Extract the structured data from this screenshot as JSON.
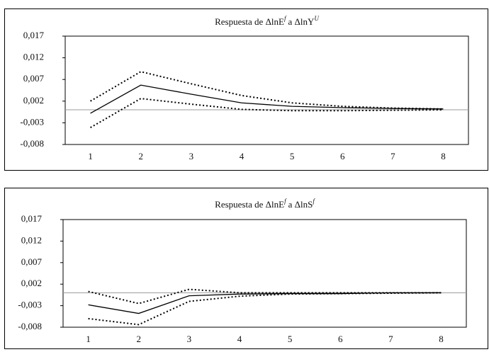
{
  "chart_data": [
    {
      "type": "line",
      "title": [
        "Respuesta de ΔlnE",
        "f",
        "a ΔlnY",
        "U"
      ],
      "categories": [
        "1",
        "2",
        "3",
        "4",
        "5",
        "6",
        "7",
        "8"
      ],
      "ylim": [
        -0.008,
        0.017
      ],
      "yticks": [
        {
          "value": -0.008,
          "label": "-0,008"
        },
        {
          "value": -0.003,
          "label": "-0,003"
        },
        {
          "value": 0.002,
          "label": "0,002"
        },
        {
          "value": 0.007,
          "label": "0,007"
        },
        {
          "value": 0.012,
          "label": "0,012"
        },
        {
          "value": 0.017,
          "label": "0,017"
        }
      ],
      "hline": 0,
      "series": [
        {
          "color": "#000000",
          "dash": "solid",
          "values": [
            -0.0008,
            0.0057,
            0.0036,
            0.0016,
            0.0008,
            0.0005,
            0.0003,
            0.0002
          ]
        },
        {
          "color": "#000000",
          "dash": "dotted",
          "values": [
            0.002,
            0.0088,
            0.006,
            0.0033,
            0.0016,
            0.0008,
            0.0004,
            0.0002
          ]
        },
        {
          "color": "#000000",
          "dash": "dotted",
          "values": [
            -0.0041,
            0.0026,
            0.0013,
            0.0001,
            -0.0002,
            -0.0002,
            -0.0001,
            0
          ]
        }
      ]
    },
    {
      "type": "line",
      "title": [
        "Respuesta de ΔlnE",
        "f",
        "a ΔlnS",
        "f"
      ],
      "categories": [
        "1",
        "2",
        "3",
        "4",
        "5",
        "6",
        "7",
        "8"
      ],
      "ylim": [
        -0.008,
        0.017
      ],
      "yticks": [
        {
          "value": -0.008,
          "label": "-0,008"
        },
        {
          "value": -0.003,
          "label": "-0,003"
        },
        {
          "value": 0.002,
          "label": "0,002"
        },
        {
          "value": 0.007,
          "label": "0,007"
        },
        {
          "value": 0.012,
          "label": "0,012"
        },
        {
          "value": 0.017,
          "label": "0,017"
        }
      ],
      "hline": 0,
      "series": [
        {
          "color": "#000000",
          "dash": "solid",
          "values": [
            -0.0028,
            -0.0048,
            -0.0007,
            -0.0003,
            -0.0002,
            -0.0002,
            0,
            0
          ]
        },
        {
          "color": "#000000",
          "dash": "dotted",
          "values": [
            0.0003,
            -0.0025,
            0.0008,
            0,
            0,
            0,
            0,
            0
          ]
        },
        {
          "color": "#000000",
          "dash": "dotted",
          "values": [
            -0.006,
            -0.0074,
            -0.002,
            -0.0008,
            -0.0003,
            -0.0002,
            -0.0001,
            0
          ]
        }
      ]
    }
  ]
}
